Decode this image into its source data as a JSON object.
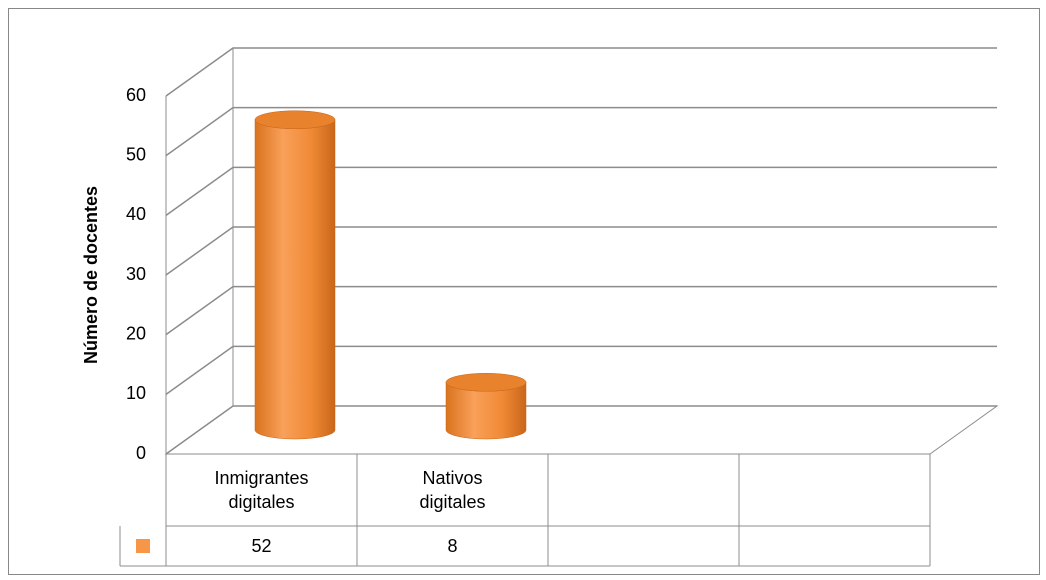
{
  "chart_data": {
    "type": "bar3d",
    "y_label": "Número de docentes",
    "categories": [
      "Inmigrantes digitales",
      "Nativos digitales",
      null,
      null
    ],
    "values": [
      52,
      8,
      null,
      null
    ],
    "color": "#f79646",
    "ylim": [
      0,
      60
    ],
    "yticks": [
      0,
      10,
      20,
      30,
      40,
      50,
      60
    ],
    "grid": true,
    "data_table": true
  }
}
